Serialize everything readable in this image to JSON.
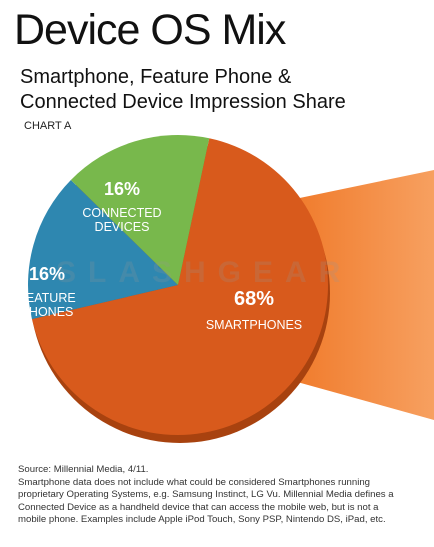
{
  "title": "Device OS Mix",
  "subtitle_lines": [
    "Smartphone, Feature Phone &",
    "Connected Device Impression Share"
  ],
  "chart_label": "CHART A",
  "watermark": "SLASHGEAR",
  "colors": {
    "smartphones": "#d85a1c",
    "feature": "#2e87b0",
    "connected": "#78b84c",
    "beam": "#f07a2a"
  },
  "chart_data": {
    "type": "pie",
    "slices": [
      {
        "pct_label": "68%",
        "value": 68,
        "name_lines": [
          "SMARTPHONES"
        ]
      },
      {
        "pct_label": "16%",
        "value": 16,
        "name_lines": [
          "FEATURE",
          "PHONES"
        ]
      },
      {
        "pct_label": "16%",
        "value": 16,
        "name_lines": [
          "CONNECTED",
          "DEVICES"
        ]
      }
    ]
  },
  "footnote": {
    "source": "Source: Millennial Media, 4/11.",
    "lines": [
      "Smartphone data does not include what could be considered Smartphones running",
      "proprietary Operating Systems, e.g. Samsung Instinct, LG Vu. Millennial Media defines a",
      "Connected Device as a handheld device that can access the mobile web, but is not a",
      "mobile phone. Examples include Apple iPod Touch, Sony PSP, Nintendo DS, iPad, etc."
    ]
  }
}
